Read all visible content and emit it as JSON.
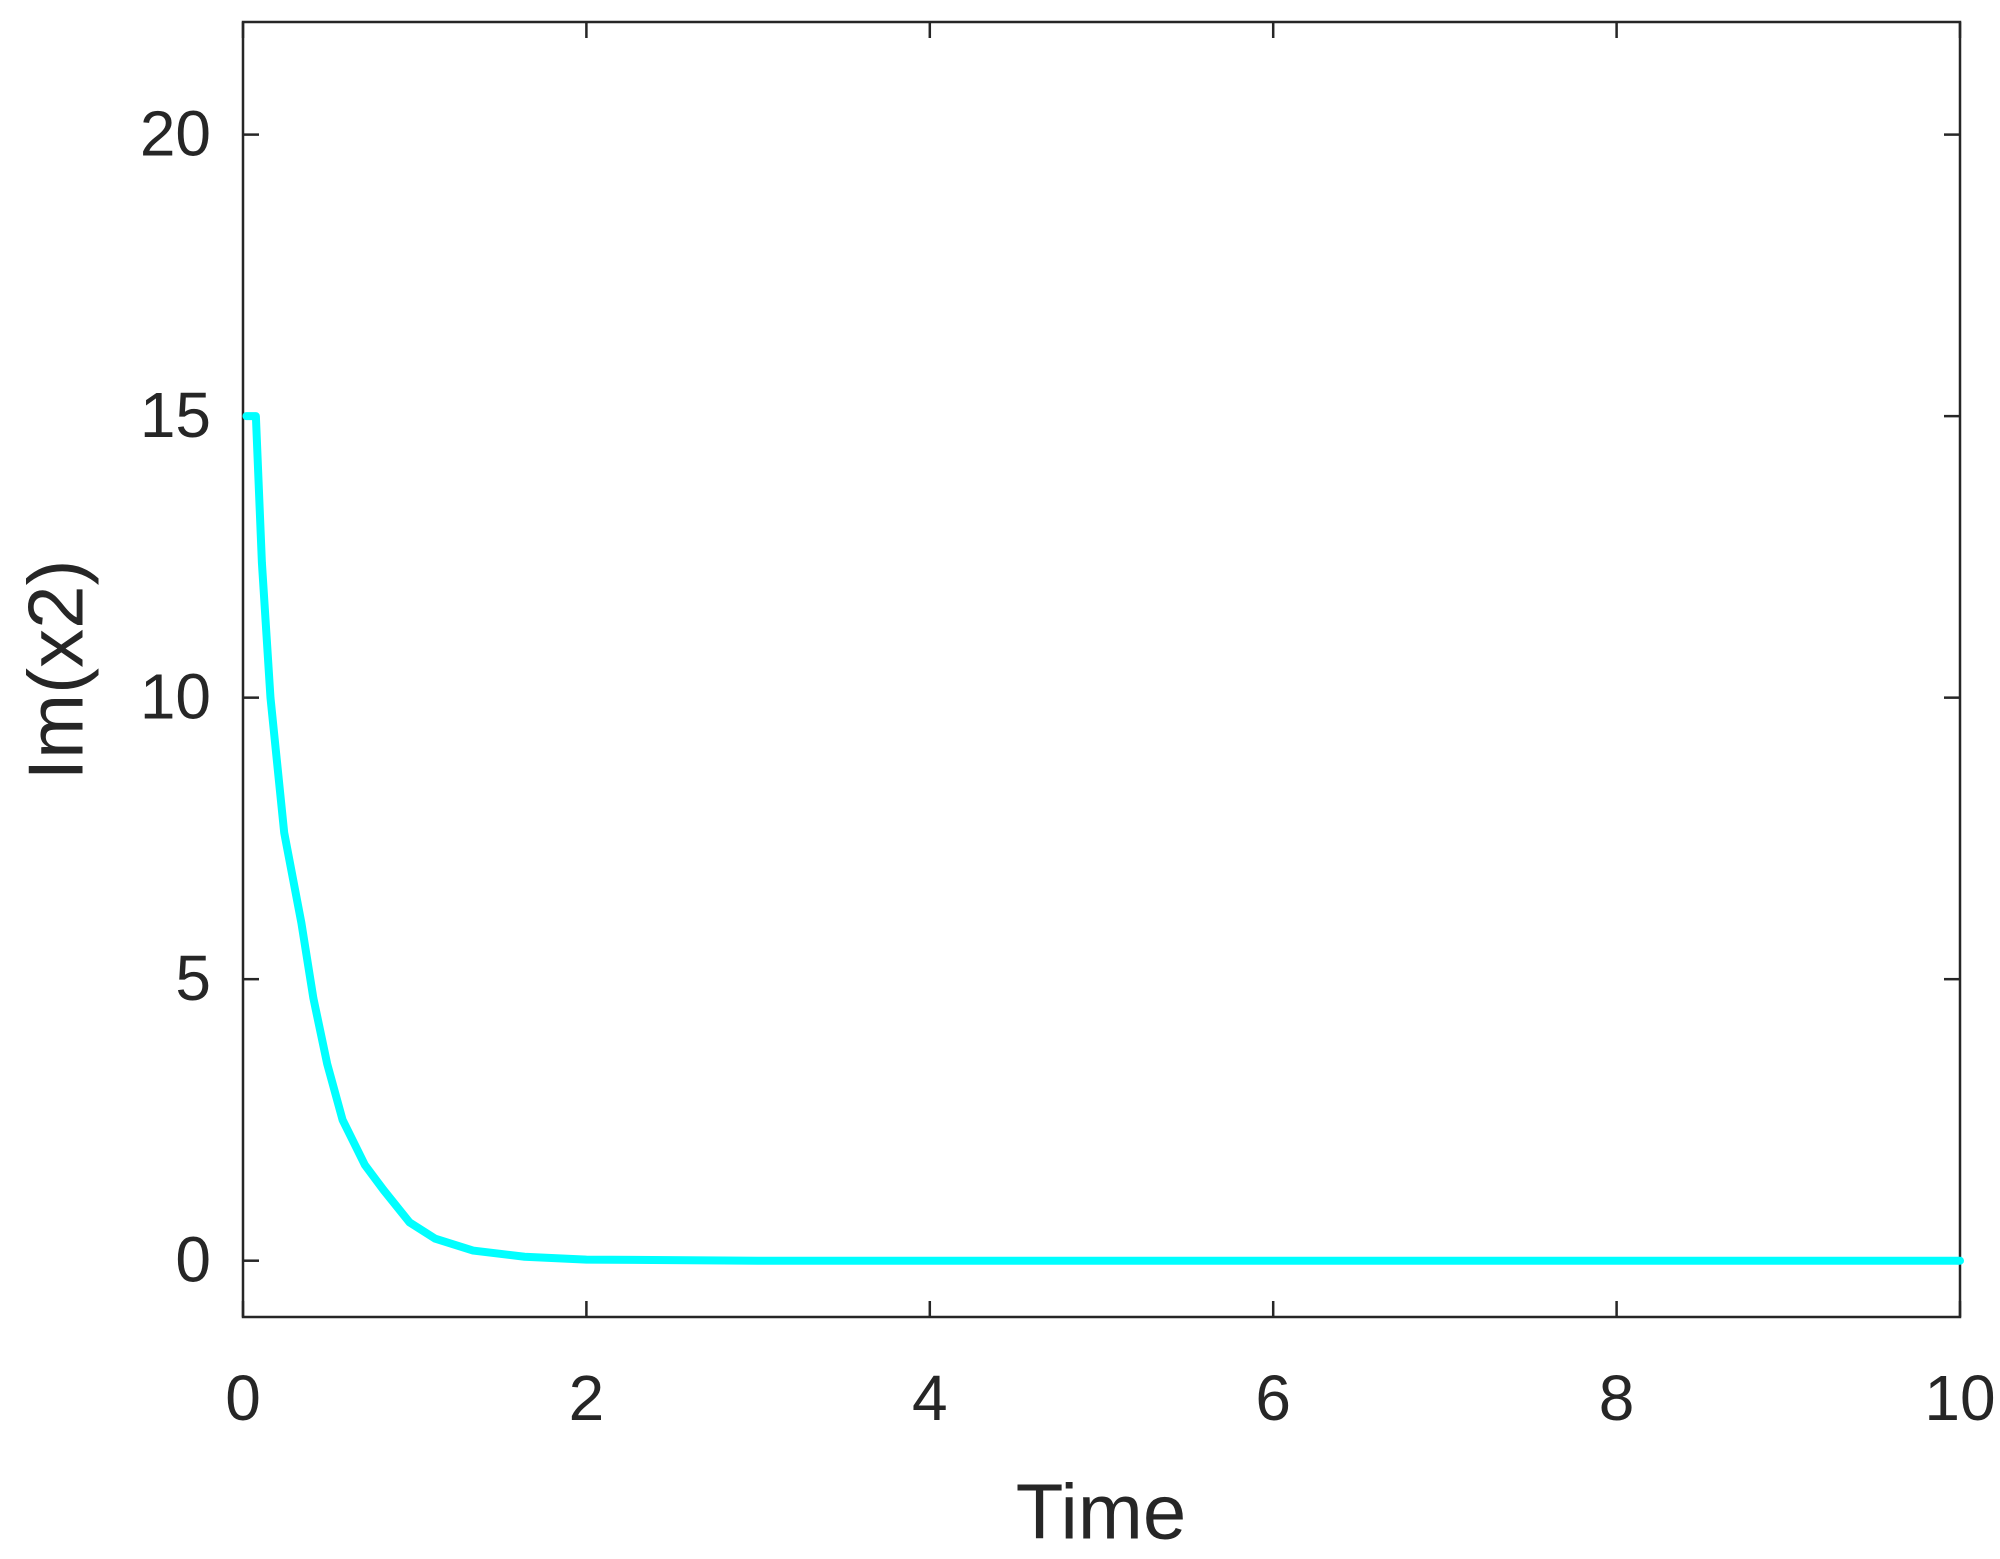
{
  "chart_data": {
    "type": "line",
    "xlabel": "Time",
    "ylabel": "Im(x2)",
    "x": [
      0.02,
      0.075,
      0.11,
      0.16,
      0.24,
      0.34,
      0.41,
      0.49,
      0.58,
      0.71,
      0.82,
      0.97,
      1.12,
      1.34,
      1.64,
      2.0,
      3.0,
      10.0
    ],
    "series": [
      {
        "color": "#00ffff",
        "values": [
          15,
          15,
          12.4,
          10,
          7.6,
          6.0,
          4.66,
          3.5,
          2.5,
          1.7,
          1.25,
          0.68,
          0.39,
          0.18,
          0.07,
          0.02,
          0,
          0
        ]
      }
    ],
    "xlim": [
      0,
      10
    ],
    "ylim": [
      -1,
      22
    ],
    "xticks": [
      0,
      2,
      4,
      6,
      8,
      10
    ],
    "yticks": [
      0,
      5,
      10,
      15,
      20
    ]
  }
}
